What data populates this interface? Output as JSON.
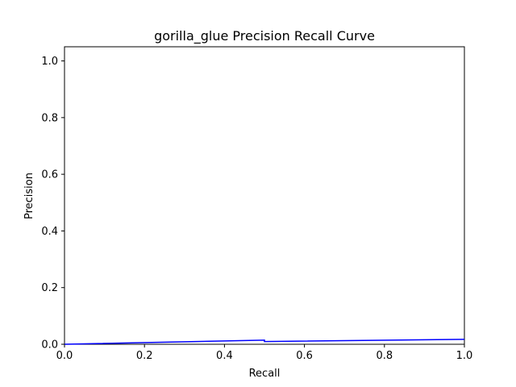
{
  "chart_data": {
    "type": "line",
    "title": "gorilla_glue Precision Recall Curve",
    "xlabel": "Recall",
    "ylabel": "Precision",
    "xlim": [
      0.0,
      1.0
    ],
    "ylim": [
      0.0,
      1.05
    ],
    "x_ticks": [
      "0.0",
      "0.2",
      "0.4",
      "0.6",
      "0.8",
      "1.0"
    ],
    "y_ticks": [
      "0.0",
      "0.2",
      "0.4",
      "0.6",
      "0.8",
      "1.0"
    ],
    "grid": false,
    "legend": "none",
    "series": [
      {
        "color": "#0000ff",
        "x": [
          0.0,
          0.5,
          0.5,
          1.0
        ],
        "y": [
          0.0,
          0.0145,
          0.0095,
          0.0175
        ]
      }
    ]
  }
}
